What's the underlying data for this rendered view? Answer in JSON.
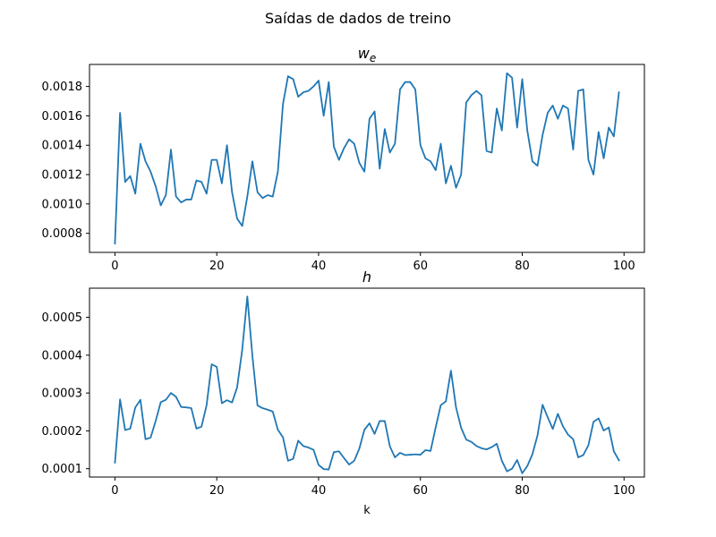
{
  "figure": {
    "suptitle": "Saídas de dados de treino",
    "accent_color": "#1f77b4"
  },
  "chart_data": [
    {
      "type": "line",
      "title": "w_e",
      "xlabel": "",
      "ylabel": "",
      "xlim": [
        -5,
        104
      ],
      "ylim": [
        0.00067,
        0.00195
      ],
      "xticks": [
        0,
        20,
        40,
        60,
        80,
        100
      ],
      "yticks": [
        0.0008,
        0.001,
        0.0012,
        0.0014,
        0.0016,
        0.0018
      ],
      "ytick_labels": [
        "0.0008",
        "0.0010",
        "0.0012",
        "0.0014",
        "0.0016",
        "0.0018"
      ],
      "grid": false,
      "series": [
        {
          "values": [
            0.00073,
            0.00162,
            0.00115,
            0.00119,
            0.00107,
            0.00141,
            0.00129,
            0.00122,
            0.00112,
            0.00099,
            0.00106,
            0.00137,
            0.00105,
            0.00101,
            0.00103,
            0.00103,
            0.00116,
            0.00115,
            0.00107,
            0.0013,
            0.0013,
            0.00114,
            0.0014,
            0.00108,
            0.0009,
            0.00085,
            0.00105,
            0.00129,
            0.00108,
            0.00104,
            0.00106,
            0.00105,
            0.00122,
            0.00168,
            0.00187,
            0.00185,
            0.00173,
            0.00176,
            0.00177,
            0.0018,
            0.00184,
            0.0016,
            0.00183,
            0.00139,
            0.0013,
            0.00138,
            0.00144,
            0.00141,
            0.00128,
            0.00122,
            0.00158,
            0.00163,
            0.00124,
            0.00151,
            0.00135,
            0.00141,
            0.00178,
            0.00183,
            0.00183,
            0.00178,
            0.0014,
            0.00131,
            0.00129,
            0.00123,
            0.00141,
            0.00114,
            0.00126,
            0.00111,
            0.0012,
            0.00169,
            0.00174,
            0.00177,
            0.00174,
            0.00136,
            0.00135,
            0.00165,
            0.0015,
            0.00189,
            0.00186,
            0.00152,
            0.00185,
            0.0015,
            0.00129,
            0.00126,
            0.00147,
            0.00162,
            0.00167,
            0.00158,
            0.00167,
            0.00165,
            0.00137,
            0.00177,
            0.00178,
            0.0013,
            0.0012,
            0.00149,
            0.00131,
            0.00152,
            0.00146,
            0.00176
          ]
        }
      ]
    },
    {
      "type": "line",
      "title": "h",
      "xlabel": "k",
      "ylabel": "",
      "xlim": [
        -5,
        104
      ],
      "ylim": [
        7.8e-05,
        0.000577
      ],
      "xticks": [
        0,
        20,
        40,
        60,
        80,
        100
      ],
      "yticks": [
        0.0001,
        0.0002,
        0.0003,
        0.0004,
        0.0005
      ],
      "ytick_labels": [
        "0.0001",
        "0.0002",
        "0.0003",
        "0.0004",
        "0.0005"
      ],
      "grid": false,
      "series": [
        {
          "values": [
            0.000116,
            0.000283,
            0.000202,
            0.000206,
            0.000262,
            0.000282,
            0.000178,
            0.000182,
            0.000226,
            0.000276,
            0.000282,
            0.0003,
            0.00029,
            0.000263,
            0.000262,
            0.00026,
            0.000206,
            0.000211,
            0.000268,
            0.000376,
            0.000369,
            0.000273,
            0.000281,
            0.000275,
            0.000315,
            0.000414,
            0.000555,
            0.000398,
            0.000267,
            0.00026,
            0.000256,
            0.000251,
            0.000203,
            0.000183,
            0.000121,
            0.000126,
            0.000174,
            0.00016,
            0.000156,
            0.00015,
            0.00011,
            9.9e-05,
            9.8e-05,
            0.000144,
            0.000146,
            0.000128,
            0.000111,
            0.000121,
            0.000153,
            0.000203,
            0.00022,
            0.000192,
            0.000226,
            0.000226,
            0.000159,
            0.00013,
            0.000142,
            0.000136,
            0.000137,
            0.000138,
            0.000137,
            0.000149,
            0.000147,
            0.000209,
            0.000268,
            0.000278,
            0.000359,
            0.000262,
            0.000208,
            0.000177,
            0.000171,
            0.00016,
            0.000154,
            0.000151,
            0.000157,
            0.000166,
            0.000121,
            9.3e-05,
            0.0001,
            0.000123,
            8.8e-05,
            0.000107,
            0.000138,
            0.000188,
            0.000269,
            0.000236,
            0.000205,
            0.000245,
            0.000212,
            0.00019,
            0.000178,
            0.00013,
            0.000136,
            0.000162,
            0.000224,
            0.000233,
            0.000201,
            0.000209,
            0.000146,
            0.000122
          ]
        }
      ]
    }
  ]
}
